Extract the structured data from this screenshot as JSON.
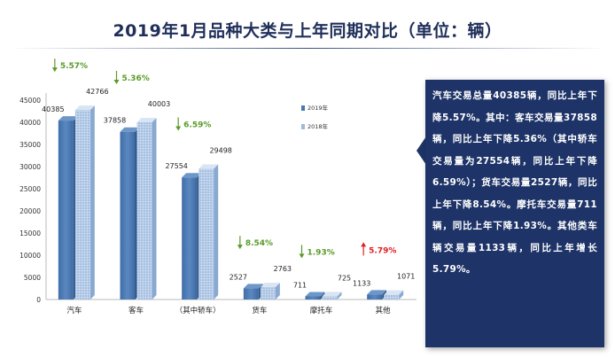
{
  "page": {
    "title": "2019年1月品种大类与上年同期对比（单位：辆）"
  },
  "chart_data": {
    "type": "bar",
    "categories": [
      "汽车",
      "客车",
      "（其中轿车）",
      "货车",
      "摩托车",
      "其他"
    ],
    "series": [
      {
        "name": "2019年",
        "values": [
          40385,
          37858,
          27554,
          2527,
          711,
          1133
        ],
        "color": "#4a78b0"
      },
      {
        "name": "2018年",
        "values": [
          42766,
          40003,
          29498,
          2763,
          725,
          1071
        ],
        "color": "#a9c2e2"
      }
    ],
    "ylim": [
      0,
      45000
    ],
    "yticks": [
      0,
      5000,
      10000,
      15000,
      20000,
      25000,
      30000,
      35000,
      40000,
      45000
    ],
    "changes": [
      {
        "label": "5.57%",
        "direction": "down",
        "color": "#5a9a2a"
      },
      {
        "label": "5.36%",
        "direction": "down",
        "color": "#5a9a2a"
      },
      {
        "label": "6.59%",
        "direction": "down",
        "color": "#5a9a2a"
      },
      {
        "label": "8.54%",
        "direction": "down",
        "color": "#5a9a2a"
      },
      {
        "label": "1.93%",
        "direction": "down",
        "color": "#5a9a2a"
      },
      {
        "label": "5.79%",
        "direction": "up",
        "color": "#e02020"
      }
    ],
    "legend_position": "top-right",
    "title": "",
    "xlabel": "",
    "ylabel": ""
  },
  "callout": {
    "text": "汽车交易总量40385辆，同比上年下降5.57%。其中：客车交易量37858辆，同比上年下降5.36%（其中轿车交易量为27554辆，同比上年下降6.59%）；货车交易量2527辆，同比上年下降8.54%。摩托车交易量711辆，同比上年下降1.93%。其他类车辆交易量1133辆，同比上年增长5.79%。"
  },
  "colors": {
    "title": "#1f2f5a",
    "callout_bg": "#1e3468",
    "down": "#5a9a2a",
    "up": "#e02020"
  }
}
